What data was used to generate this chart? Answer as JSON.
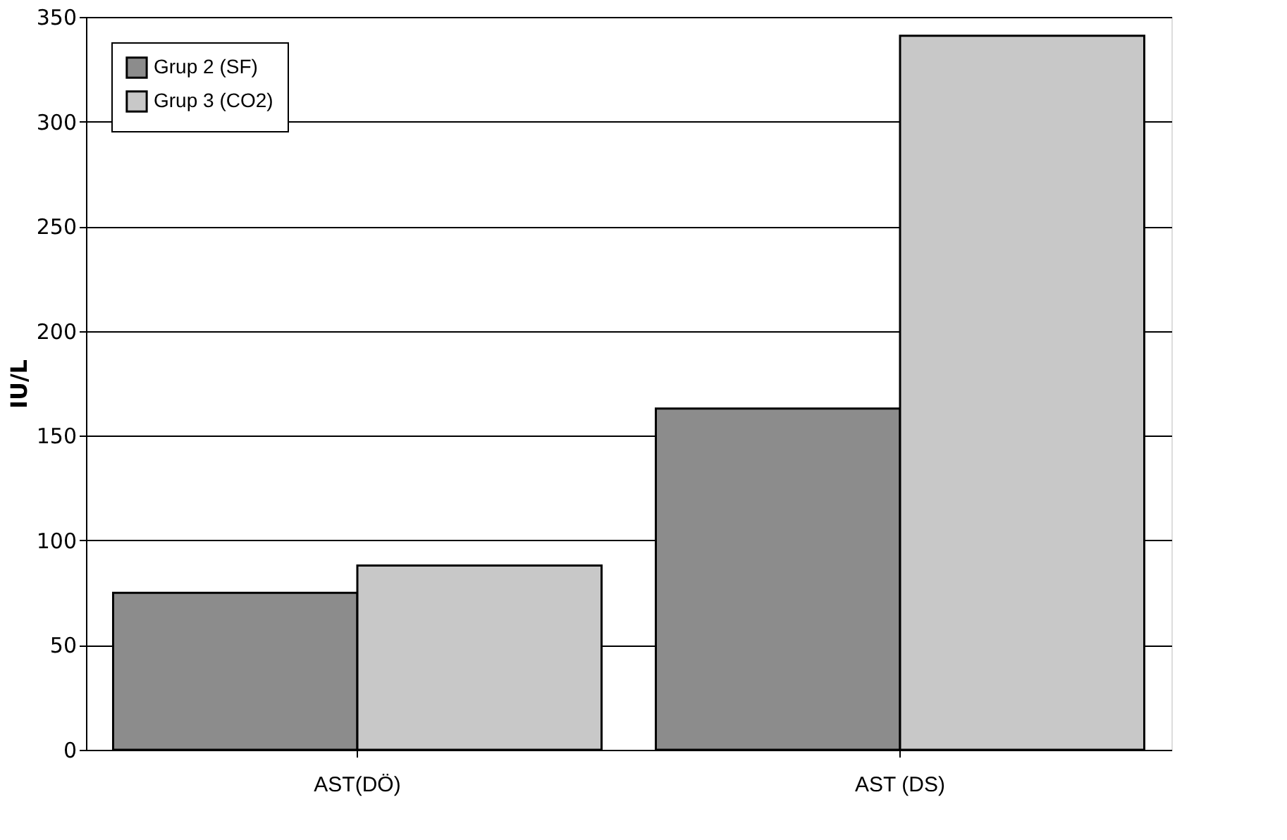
{
  "chart_data": {
    "type": "bar",
    "ylabel": "IU/L",
    "categories": [
      "AST(DÖ)",
      "AST (DS)"
    ],
    "series": [
      {
        "name": "Grup 2 (SF)",
        "color": "#8c8c8c",
        "values": [
          75,
          163
        ]
      },
      {
        "name": "Grup 3 (CO2)",
        "color": "#c8c8c8",
        "values": [
          88,
          341
        ]
      }
    ],
    "ylim": [
      0,
      350
    ],
    "yticks": [
      0,
      50,
      100,
      150,
      200,
      250,
      300,
      350
    ],
    "grid": "y",
    "legend": "top left"
  }
}
